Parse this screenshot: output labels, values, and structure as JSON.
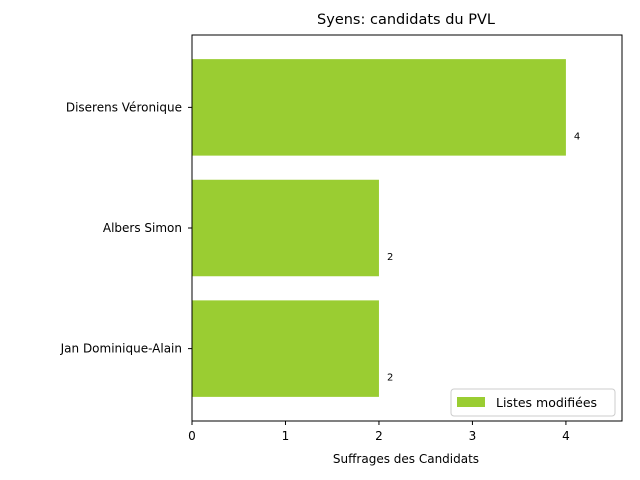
{
  "chart_data": {
    "type": "bar",
    "orientation": "horizontal",
    "title": "Syens: candidats du PVL",
    "xlabel": "Suffrages des Candidats",
    "ylabel": "",
    "categories": [
      "Jan Dominique-Alain",
      "Albers Simon",
      "Diserens Véronique"
    ],
    "series": [
      {
        "name": "Listes modifiées",
        "values": [
          2,
          2,
          4
        ],
        "color": "#9acd32"
      }
    ],
    "data_labels": [
      "2",
      "2",
      "4"
    ],
    "xlim": [
      0,
      4.6
    ],
    "xticks": [
      "0",
      "1",
      "2",
      "3",
      "4"
    ],
    "grid": false,
    "legend_position": "lower-right"
  }
}
